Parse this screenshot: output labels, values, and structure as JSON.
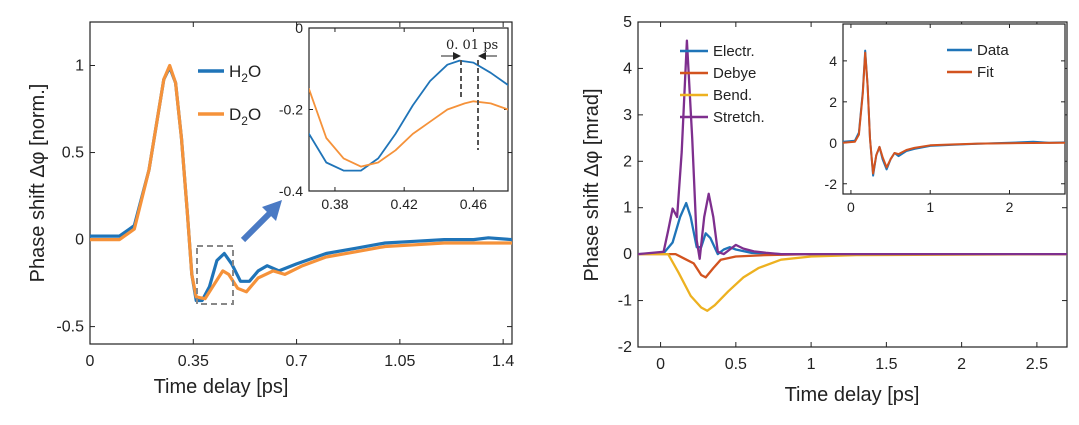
{
  "colors": {
    "blue": "#1f74b8",
    "orange": "#f5923a",
    "red": "#d2531f",
    "yellow": "#edb120",
    "purple": "#7e2f8e",
    "arrow": "#4a7ac4"
  },
  "chart_data": [
    {
      "id": "left",
      "type": "line",
      "title": "",
      "xlabel": "Time delay [ps]",
      "ylabel": "Phase shift Δφ [norm.]",
      "xlim": [
        0,
        1.43
      ],
      "ylim": [
        -0.6,
        1.25
      ],
      "xticks": [
        0,
        0.35,
        0.7,
        1.05,
        1.4
      ],
      "xtick_labels": [
        "0",
        "0.35",
        "0.7",
        "1.05",
        "1.4"
      ],
      "yticks": [
        -0.5,
        0,
        0.5,
        1
      ],
      "ytick_labels": [
        "-0.5",
        "0",
        "0.5",
        "1"
      ],
      "legend": {
        "entries": [
          {
            "base": "H",
            "sub": "2",
            "tail": "O"
          },
          {
            "base": "D",
            "sub": "2",
            "tail": "O"
          }
        ]
      },
      "series": [
        {
          "name": "H2O",
          "color": "blue",
          "points": [
            [
              0,
              0.02
            ],
            [
              0.1,
              0.02
            ],
            [
              0.15,
              0.08
            ],
            [
              0.2,
              0.4
            ],
            [
              0.25,
              0.92
            ],
            [
              0.27,
              0.99
            ],
            [
              0.29,
              0.9
            ],
            [
              0.31,
              0.58
            ],
            [
              0.33,
              0.15
            ],
            [
              0.345,
              -0.2
            ],
            [
              0.36,
              -0.35
            ],
            [
              0.38,
              -0.35
            ],
            [
              0.405,
              -0.27
            ],
            [
              0.43,
              -0.12
            ],
            [
              0.455,
              -0.08
            ],
            [
              0.48,
              -0.14
            ],
            [
              0.51,
              -0.24
            ],
            [
              0.54,
              -0.24
            ],
            [
              0.57,
              -0.18
            ],
            [
              0.6,
              -0.15
            ],
            [
              0.64,
              -0.18
            ],
            [
              0.7,
              -0.14
            ],
            [
              0.8,
              -0.08
            ],
            [
              0.9,
              -0.05
            ],
            [
              1.0,
              -0.02
            ],
            [
              1.1,
              -0.01
            ],
            [
              1.2,
              0.0
            ],
            [
              1.3,
              0.0
            ],
            [
              1.35,
              0.01
            ],
            [
              1.43,
              0.0
            ]
          ]
        },
        {
          "name": "D2O",
          "color": "orange",
          "points": [
            [
              0,
              0.0
            ],
            [
              0.1,
              0.0
            ],
            [
              0.15,
              0.06
            ],
            [
              0.2,
              0.4
            ],
            [
              0.25,
              0.92
            ],
            [
              0.27,
              1.0
            ],
            [
              0.29,
              0.9
            ],
            [
              0.31,
              0.58
            ],
            [
              0.33,
              0.15
            ],
            [
              0.345,
              -0.2
            ],
            [
              0.36,
              -0.33
            ],
            [
              0.39,
              -0.34
            ],
            [
              0.42,
              -0.26
            ],
            [
              0.45,
              -0.18
            ],
            [
              0.47,
              -0.2
            ],
            [
              0.5,
              -0.28
            ],
            [
              0.53,
              -0.3
            ],
            [
              0.57,
              -0.22
            ],
            [
              0.62,
              -0.18
            ],
            [
              0.66,
              -0.2
            ],
            [
              0.72,
              -0.15
            ],
            [
              0.8,
              -0.1
            ],
            [
              0.9,
              -0.07
            ],
            [
              1.0,
              -0.04
            ],
            [
              1.1,
              -0.03
            ],
            [
              1.2,
              -0.02
            ],
            [
              1.3,
              -0.02
            ],
            [
              1.43,
              -0.02
            ]
          ]
        }
      ],
      "annotations": [
        "selection box around 0.34-0.48 ps",
        "arrow to inset"
      ]
    },
    {
      "id": "left-inset",
      "type": "line",
      "xlim": [
        0.365,
        0.48
      ],
      "ylim": [
        -0.4,
        0.0
      ],
      "xticks": [
        0.38,
        0.42,
        0.46
      ],
      "xtick_labels": [
        "0.38",
        "0.42",
        "0.46"
      ],
      "yticks": [
        -0.4,
        -0.2,
        0
      ],
      "ytick_labels": [
        "-0.4",
        "-0.2",
        "0"
      ],
      "annotation_text": "0. 01 ps",
      "markers_x": [
        0.45,
        0.46
      ],
      "series": [
        {
          "name": "H2O",
          "color": "blue",
          "points": [
            [
              0.365,
              -0.26
            ],
            [
              0.375,
              -0.33
            ],
            [
              0.385,
              -0.35
            ],
            [
              0.395,
              -0.35
            ],
            [
              0.405,
              -0.32
            ],
            [
              0.415,
              -0.26
            ],
            [
              0.425,
              -0.19
            ],
            [
              0.435,
              -0.13
            ],
            [
              0.445,
              -0.09
            ],
            [
              0.452,
              -0.08
            ],
            [
              0.46,
              -0.085
            ],
            [
              0.47,
              -0.11
            ],
            [
              0.48,
              -0.14
            ]
          ]
        },
        {
          "name": "D2O",
          "color": "orange",
          "points": [
            [
              0.365,
              -0.15
            ],
            [
              0.375,
              -0.27
            ],
            [
              0.385,
              -0.32
            ],
            [
              0.395,
              -0.34
            ],
            [
              0.405,
              -0.33
            ],
            [
              0.415,
              -0.3
            ],
            [
              0.425,
              -0.26
            ],
            [
              0.435,
              -0.23
            ],
            [
              0.445,
              -0.2
            ],
            [
              0.455,
              -0.185
            ],
            [
              0.46,
              -0.18
            ],
            [
              0.47,
              -0.185
            ],
            [
              0.48,
              -0.2
            ]
          ]
        }
      ]
    },
    {
      "id": "right",
      "type": "line",
      "title": "",
      "xlabel": "Time delay [ps]",
      "ylabel": "Phase shift Δφ [mrad]",
      "xlim": [
        -0.15,
        2.7
      ],
      "ylim": [
        -2,
        5
      ],
      "xticks": [
        0,
        0.5,
        1,
        1.5,
        2,
        2.5
      ],
      "xtick_labels": [
        "0",
        "0.5",
        "1",
        "1.5",
        "2",
        "2.5"
      ],
      "yticks": [
        -2,
        -1,
        0,
        1,
        2,
        3,
        4,
        5
      ],
      "ytick_labels": [
        "-2",
        "-1",
        "0",
        "1",
        "2",
        "3",
        "4",
        "5"
      ],
      "series": [
        {
          "name": "Electr.",
          "color": "blue",
          "points": [
            [
              -0.15,
              0
            ],
            [
              0.02,
              0.02
            ],
            [
              0.08,
              0.25
            ],
            [
              0.13,
              0.8
            ],
            [
              0.17,
              1.1
            ],
            [
              0.2,
              0.8
            ],
            [
              0.24,
              0.15
            ],
            [
              0.27,
              0.15
            ],
            [
              0.3,
              0.45
            ],
            [
              0.33,
              0.35
            ],
            [
              0.38,
              0.0
            ],
            [
              0.42,
              0.1
            ],
            [
              0.46,
              0.15
            ],
            [
              0.5,
              0.1
            ],
            [
              0.6,
              0.03
            ],
            [
              0.8,
              0
            ],
            [
              2.7,
              0
            ]
          ]
        },
        {
          "name": "Debye",
          "color": "red",
          "points": [
            [
              -0.15,
              0
            ],
            [
              0.1,
              0
            ],
            [
              0.16,
              -0.1
            ],
            [
              0.22,
              -0.2
            ],
            [
              0.27,
              -0.45
            ],
            [
              0.3,
              -0.5
            ],
            [
              0.35,
              -0.3
            ],
            [
              0.4,
              -0.12
            ],
            [
              0.5,
              -0.05
            ],
            [
              0.7,
              -0.02
            ],
            [
              1.0,
              0
            ],
            [
              2.7,
              0
            ]
          ]
        },
        {
          "name": "Bend.",
          "color": "yellow",
          "points": [
            [
              -0.15,
              0
            ],
            [
              0.05,
              0
            ],
            [
              0.12,
              -0.4
            ],
            [
              0.2,
              -0.9
            ],
            [
              0.27,
              -1.15
            ],
            [
              0.31,
              -1.22
            ],
            [
              0.36,
              -1.1
            ],
            [
              0.45,
              -0.8
            ],
            [
              0.55,
              -0.5
            ],
            [
              0.65,
              -0.3
            ],
            [
              0.8,
              -0.12
            ],
            [
              1.0,
              -0.05
            ],
            [
              1.3,
              -0.02
            ],
            [
              2.7,
              0
            ]
          ]
        },
        {
          "name": "Stretch.",
          "color": "purple",
          "points": [
            [
              -0.15,
              0
            ],
            [
              0.02,
              0.05
            ],
            [
              0.05,
              0.5
            ],
            [
              0.08,
              0.98
            ],
            [
              0.11,
              0.8
            ],
            [
              0.14,
              2.2
            ],
            [
              0.175,
              4.6
            ],
            [
              0.21,
              2.5
            ],
            [
              0.24,
              0.3
            ],
            [
              0.26,
              -0.1
            ],
            [
              0.29,
              0.8
            ],
            [
              0.32,
              1.3
            ],
            [
              0.35,
              0.8
            ],
            [
              0.38,
              0.05
            ],
            [
              0.42,
              0.0
            ],
            [
              0.46,
              0.1
            ],
            [
              0.5,
              0.2
            ],
            [
              0.55,
              0.12
            ],
            [
              0.62,
              0.06
            ],
            [
              0.7,
              0.03
            ],
            [
              0.8,
              0
            ],
            [
              2.7,
              0
            ]
          ]
        }
      ]
    },
    {
      "id": "right-inset",
      "type": "line",
      "xlim": [
        -0.1,
        2.7
      ],
      "ylim": [
        -2.5,
        5.8
      ],
      "xticks": [
        0,
        1,
        2
      ],
      "xtick_labels": [
        "0",
        "1",
        "2"
      ],
      "yticks": [
        -2,
        0,
        2,
        4
      ],
      "ytick_labels": [
        "-2",
        "0",
        "2",
        "4"
      ],
      "series": [
        {
          "name": "Data",
          "color": "blue",
          "points": [
            [
              -0.1,
              0.05
            ],
            [
              0.05,
              0.1
            ],
            [
              0.1,
              0.5
            ],
            [
              0.15,
              2.5
            ],
            [
              0.18,
              4.5
            ],
            [
              0.21,
              2.8
            ],
            [
              0.24,
              0.2
            ],
            [
              0.28,
              -1.6
            ],
            [
              0.32,
              -0.6
            ],
            [
              0.36,
              -0.2
            ],
            [
              0.4,
              -0.8
            ],
            [
              0.45,
              -1.3
            ],
            [
              0.5,
              -0.8
            ],
            [
              0.55,
              -0.5
            ],
            [
              0.6,
              -0.65
            ],
            [
              0.7,
              -0.4
            ],
            [
              0.8,
              -0.3
            ],
            [
              1.0,
              -0.15
            ],
            [
              1.3,
              -0.1
            ],
            [
              1.6,
              -0.05
            ],
            [
              2.0,
              0.0
            ],
            [
              2.3,
              0.05
            ],
            [
              2.5,
              0.0
            ],
            [
              2.7,
              0.02
            ]
          ]
        },
        {
          "name": "Fit",
          "color": "red",
          "points": [
            [
              -0.1,
              0.0
            ],
            [
              0.05,
              0.05
            ],
            [
              0.1,
              0.4
            ],
            [
              0.15,
              2.4
            ],
            [
              0.18,
              4.4
            ],
            [
              0.21,
              2.8
            ],
            [
              0.24,
              0.2
            ],
            [
              0.28,
              -1.5
            ],
            [
              0.32,
              -0.6
            ],
            [
              0.36,
              -0.2
            ],
            [
              0.4,
              -0.7
            ],
            [
              0.45,
              -1.2
            ],
            [
              0.5,
              -0.8
            ],
            [
              0.55,
              -0.5
            ],
            [
              0.6,
              -0.55
            ],
            [
              0.7,
              -0.35
            ],
            [
              0.8,
              -0.25
            ],
            [
              1.0,
              -0.12
            ],
            [
              1.3,
              -0.08
            ],
            [
              1.6,
              -0.04
            ],
            [
              2.0,
              -0.02
            ],
            [
              2.7,
              0.0
            ]
          ]
        }
      ],
      "legend": {
        "entries": [
          "Data",
          "Fit"
        ]
      }
    }
  ]
}
